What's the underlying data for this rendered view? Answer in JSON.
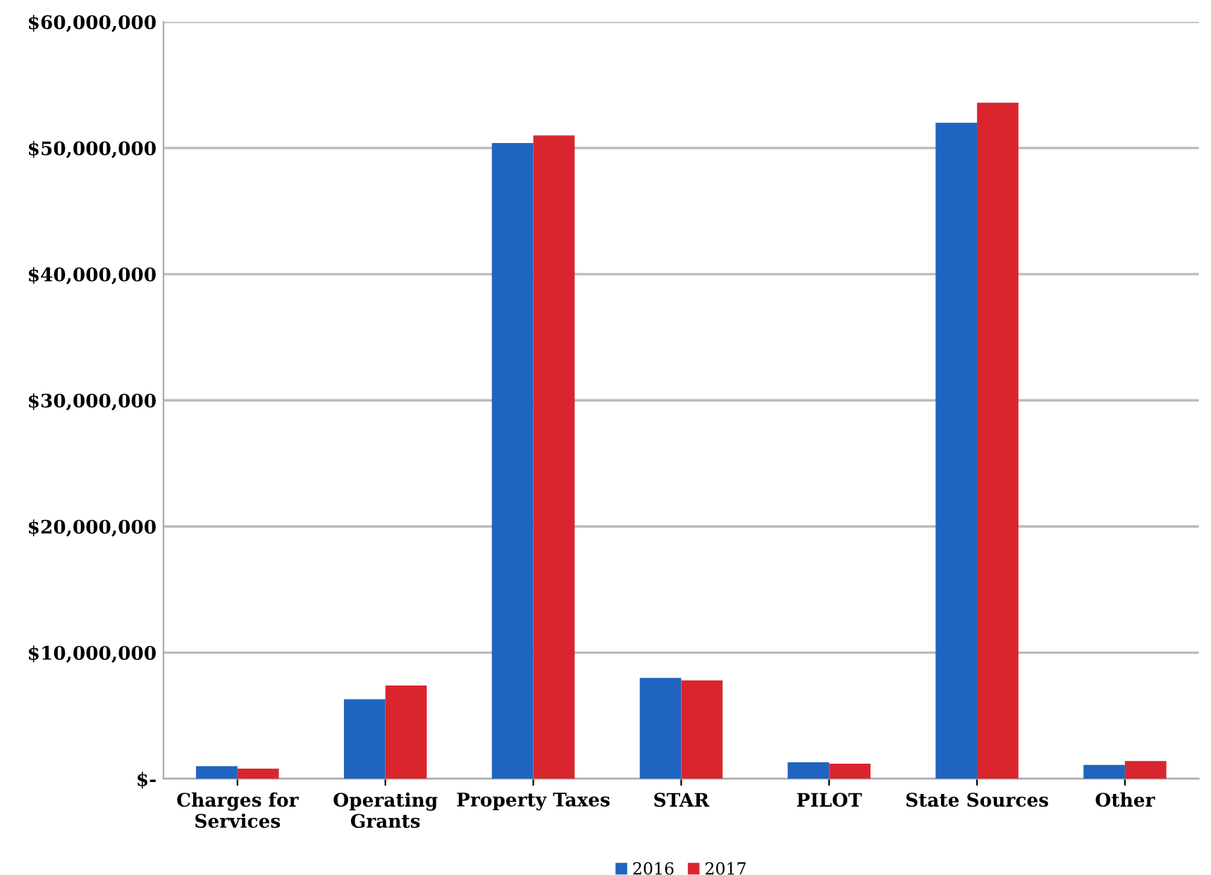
{
  "chart_data": {
    "type": "bar",
    "categories": [
      "Charges for\nServices",
      "Operating\nGrants",
      "Property Taxes",
      "STAR",
      "PILOT",
      "State Sources",
      "Other"
    ],
    "series": [
      {
        "name": "2016",
        "color": "#1f64c0",
        "values": [
          1000000,
          6300000,
          50400000,
          8000000,
          1300000,
          52000000,
          1100000
        ]
      },
      {
        "name": "2017",
        "color": "#d9262e",
        "values": [
          800000,
          7400000,
          51000000,
          7800000,
          1200000,
          53600000,
          1400000
        ]
      }
    ],
    "ylim": [
      0,
      60000000
    ],
    "yticks": [
      {
        "value": 0,
        "label": "$-"
      },
      {
        "value": 10000000,
        "label": "$10,000,000"
      },
      {
        "value": 20000000,
        "label": "$20,000,000"
      },
      {
        "value": 30000000,
        "label": "$30,000,000"
      },
      {
        "value": 40000000,
        "label": "$40,000,000"
      },
      {
        "value": 50000000,
        "label": "$50,000,000"
      },
      {
        "value": 60000000,
        "label": "$60,000,000"
      }
    ],
    "grid": "y",
    "legend": "bottom"
  }
}
